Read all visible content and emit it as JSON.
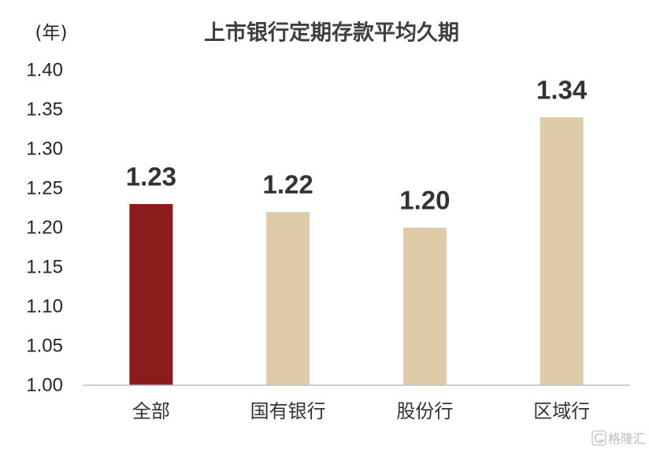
{
  "chart_data": {
    "type": "bar",
    "title": "上市银行定期存款平均久期",
    "ylabel": "(年)",
    "xlabel": "",
    "categories": [
      "全部",
      "国有银行",
      "股份行",
      "区域行"
    ],
    "values": [
      1.23,
      1.22,
      1.2,
      1.34
    ],
    "data_labels": [
      "1.23",
      "1.22",
      "1.20",
      "1.34"
    ],
    "yticks": [
      "1.00",
      "1.05",
      "1.10",
      "1.15",
      "1.20",
      "1.25",
      "1.30",
      "1.35",
      "1.40"
    ],
    "ylim": [
      1.0,
      1.4
    ],
    "grid": false,
    "bar_colors": [
      "#8C1B1B",
      "#DECBA8",
      "#DECBA8",
      "#DECBA8"
    ],
    "axis_line_color": "#BFBFBF"
  },
  "watermark": {
    "icon": "g-logo-icon",
    "text": "格隆汇"
  }
}
